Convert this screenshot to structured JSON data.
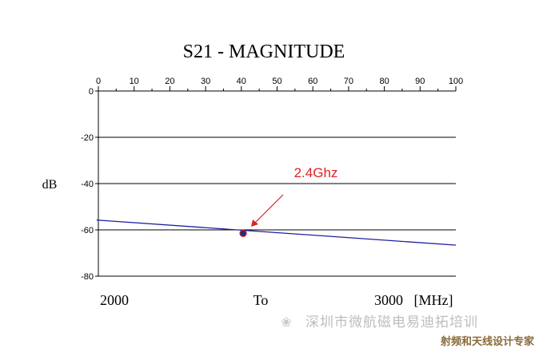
{
  "chart_data": {
    "type": "line",
    "title": "S21 - MAGNITUDE",
    "ylabel": "dB",
    "top_axis": {
      "ticks": [
        "0",
        "10",
        "20",
        "30",
        "40",
        "50",
        "60",
        "70",
        "80",
        "90",
        "100"
      ],
      "xlim": [
        0,
        100
      ]
    },
    "y_axis": {
      "ticks": [
        "0",
        "-20",
        "-40",
        "-60",
        "-80"
      ],
      "ylim": [
        -80,
        0
      ]
    },
    "bottom_labels": {
      "start": "2000",
      "middle": "To",
      "end": "3000",
      "unit": "[MHz]"
    },
    "grid": true,
    "series": [
      {
        "color": "#1f1fa0",
        "x": [
          0,
          100
        ],
        "y": [
          -55.8,
          -66.6
        ]
      }
    ],
    "marker": {
      "x": 40.5,
      "y": -61.5,
      "color": "#1f2f80",
      "edge_color": "#c02020"
    },
    "annotation": {
      "text": "2.4Ghz",
      "color": "#e02020"
    }
  },
  "watermark": {
    "line1": "深圳市微航磁电易迪拓培训",
    "line2": "射频和天线设计专家"
  }
}
